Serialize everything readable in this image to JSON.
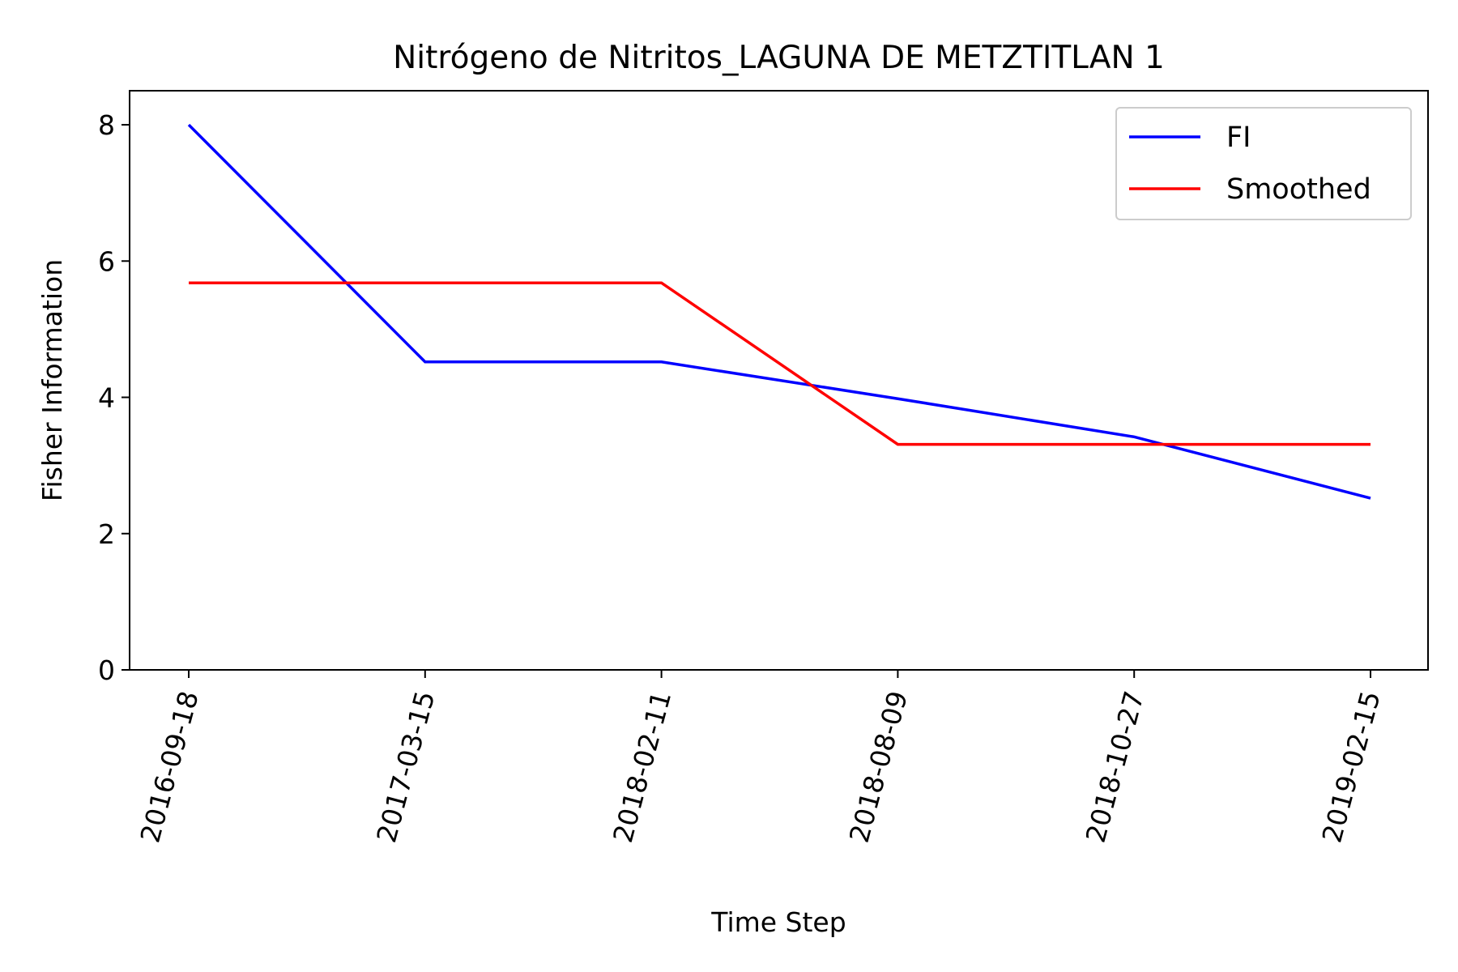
{
  "chart_data": {
    "type": "line",
    "title": "Nitrógeno de Nitritos_LAGUNA DE METZTITLAN 1",
    "xlabel": "Time Step",
    "ylabel": "Fisher Information",
    "categories": [
      "2016-09-18",
      "2017-03-15",
      "2018-02-11",
      "2018-08-09",
      "2018-10-27",
      "2019-02-15"
    ],
    "y_ticks": [
      "0",
      "2",
      "4",
      "6",
      "8"
    ],
    "ylim": [
      0,
      8.5
    ],
    "grid": false,
    "legend_position": "upper-right",
    "series": [
      {
        "name": "FI",
        "color": "#0000ff",
        "values": [
          8.0,
          4.52,
          4.52,
          3.98,
          3.42,
          2.52
        ]
      },
      {
        "name": "Smoothed",
        "color": "#ff0000",
        "values": [
          5.68,
          5.68,
          5.68,
          3.31,
          3.31,
          3.31
        ]
      }
    ]
  }
}
